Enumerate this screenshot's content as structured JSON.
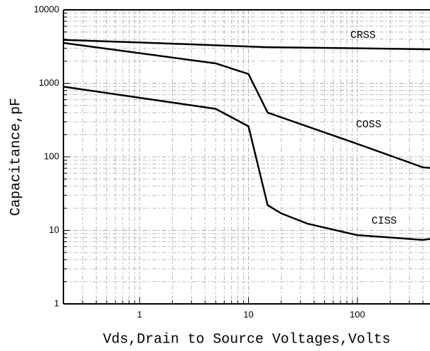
{
  "chart_data": {
    "type": "line",
    "xlabel": "Vds,Drain to Source Voltages,Volts",
    "ylabel": "Capacitance,pF",
    "xlog": true,
    "ylog": true,
    "grid": true,
    "xlim": [
      0.2,
      500
    ],
    "ylim": [
      1,
      10000
    ],
    "xticks": [
      1,
      10,
      100
    ],
    "yticks": [
      1,
      10,
      100,
      1000,
      10000
    ],
    "series": [
      {
        "name": "CRSS",
        "color": "#000000",
        "x": [
          0.2,
          1,
          5,
          15,
          100,
          500
        ],
        "values": [
          3900,
          3600,
          3300,
          3100,
          3000,
          2900
        ]
      },
      {
        "name": "COSS",
        "color": "#000000",
        "x": [
          0.2,
          5,
          10,
          15,
          100,
          400,
          500
        ],
        "values": [
          3550,
          1870,
          1340,
          400,
          150,
          72,
          70
        ]
      },
      {
        "name": "CISS",
        "color": "#000000",
        "x": [
          0.2,
          5,
          10,
          15,
          20,
          35,
          100,
          200,
          400,
          500
        ],
        "values": [
          900,
          450,
          260,
          22,
          17,
          12.3,
          8.6,
          8,
          7.4,
          7.8
        ]
      }
    ]
  }
}
